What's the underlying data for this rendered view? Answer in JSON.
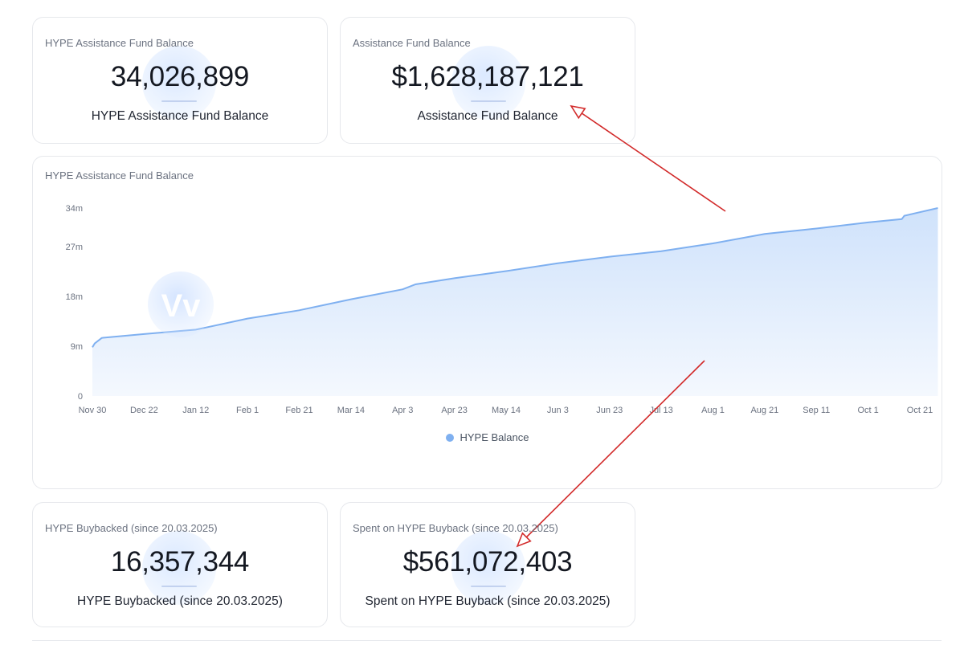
{
  "cards": {
    "hype_fund": {
      "title": "HYPE Assistance Fund Balance",
      "value": "34,026,899",
      "caption": "HYPE Assistance Fund Balance"
    },
    "usd_fund": {
      "title": "Assistance Fund Balance",
      "value": "$1,628,187,121",
      "caption": "Assistance Fund Balance"
    },
    "hype_buyback": {
      "title": "HYPE Buybacked (since 20.03.2025)",
      "value": "16,357,344",
      "caption": "HYPE Buybacked (since 20.03.2025)"
    },
    "usd_buyback": {
      "title": "Spent on HYPE Buyback (since 20.03.2025)",
      "value": "$561,072,403",
      "caption": "Spent on HYPE Buyback (since 20.03.2025)"
    }
  },
  "chart": {
    "card_title": "HYPE Assistance Fund Balance"
  },
  "chart_data": {
    "type": "area",
    "title": "HYPE Assistance Fund Balance",
    "xlabel": "",
    "ylabel": "",
    "ylim": [
      0,
      34
    ],
    "y_unit": "m",
    "y_ticks": [
      0,
      9,
      18,
      27,
      34
    ],
    "y_tick_labels": [
      "0",
      "9m",
      "18m",
      "27m",
      "34m"
    ],
    "x_tick_labels": [
      "Nov 30",
      "Dec 22",
      "Jan 12",
      "Feb 1",
      "Feb 21",
      "Mar 14",
      "Apr 3",
      "Apr 23",
      "May 14",
      "Jun 3",
      "Jun 23",
      "Jul 13",
      "Aug 1",
      "Aug 21",
      "Sep 11",
      "Oct 1",
      "Oct 21"
    ],
    "grid": false,
    "legend_position": "bottom-center",
    "series": [
      {
        "name": "HYPE Balance",
        "color": "#7fb0f0",
        "x": [
          "Nov 30",
          "Dec 1",
          "Dec 4",
          "Dec 22",
          "Jan 12",
          "Feb 1",
          "Feb 21",
          "Mar 14",
          "Apr 3",
          "Apr 8",
          "Apr 23",
          "May 14",
          "Jun 3",
          "Jun 23",
          "Jul 13",
          "Aug 1",
          "Aug 21",
          "Sep 11",
          "Oct 1",
          "Oct 14",
          "Oct 15",
          "Oct 28"
        ],
        "values": [
          8.8,
          9.5,
          10.5,
          11.2,
          12.0,
          14.0,
          15.5,
          17.5,
          19.3,
          20.2,
          21.3,
          22.6,
          24.0,
          25.2,
          26.2,
          27.6,
          29.3,
          30.3,
          31.4,
          32.0,
          32.6,
          34.0
        ]
      }
    ]
  },
  "watermark": {
    "chart_glyph": "Vv"
  },
  "colors": {
    "line": "#7fb0f0",
    "fill_top": "#cfe2fb",
    "fill_bottom": "#f4f8fe",
    "arrow": "#d22a2a",
    "card_border": "#e6e8ec"
  }
}
